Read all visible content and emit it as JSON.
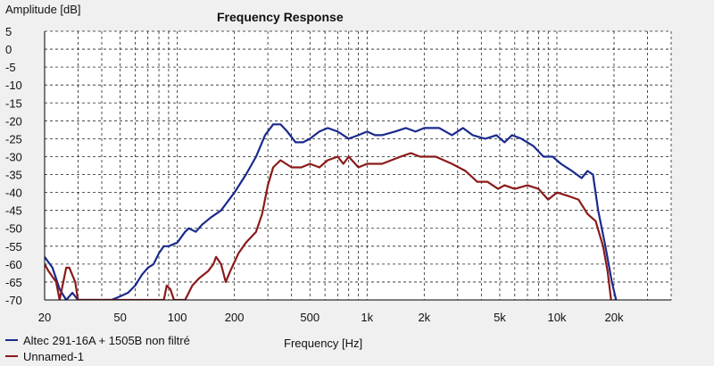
{
  "chart_data": {
    "type": "line",
    "title": "Frequency Response",
    "ylabel": "Amplitude [dB]",
    "xlabel": "Frequency [Hz]",
    "x_scale": "log",
    "xlim": [
      20,
      40000
    ],
    "ylim": [
      -70,
      5
    ],
    "y_ticks": [
      "5",
      "0",
      "-5",
      "-10",
      "-15",
      "-20",
      "-25",
      "-30",
      "-35",
      "-40",
      "-45",
      "-50",
      "-55",
      "-60",
      "-65",
      "-70"
    ],
    "x_ticks": [
      {
        "v": 20,
        "label": "20"
      },
      {
        "v": 50,
        "label": "50"
      },
      {
        "v": 100,
        "label": "100"
      },
      {
        "v": 200,
        "label": "200"
      },
      {
        "v": 500,
        "label": "500"
      },
      {
        "v": 1000,
        "label": "1k"
      },
      {
        "v": 2000,
        "label": "2k"
      },
      {
        "v": 5000,
        "label": "5k"
      },
      {
        "v": 10000,
        "label": "10k"
      },
      {
        "v": 20000,
        "label": "20k"
      }
    ],
    "grid": true,
    "legend_position": "bottom-left",
    "series": [
      {
        "name": "Altec 291-16A + 1505B non filtré",
        "color": "#1a2a8c",
        "points": [
          [
            20,
            -58
          ],
          [
            22,
            -61
          ],
          [
            24,
            -67
          ],
          [
            26,
            -70
          ],
          [
            28,
            -68
          ],
          [
            30,
            -70
          ],
          [
            45,
            -70
          ],
          [
            50,
            -69
          ],
          [
            55,
            -68
          ],
          [
            60,
            -66
          ],
          [
            65,
            -63
          ],
          [
            70,
            -61
          ],
          [
            75,
            -60
          ],
          [
            80,
            -57
          ],
          [
            85,
            -55
          ],
          [
            90,
            -55
          ],
          [
            100,
            -54
          ],
          [
            110,
            -51
          ],
          [
            115,
            -50
          ],
          [
            125,
            -51
          ],
          [
            135,
            -49
          ],
          [
            150,
            -47
          ],
          [
            170,
            -45
          ],
          [
            200,
            -40
          ],
          [
            230,
            -35
          ],
          [
            260,
            -30
          ],
          [
            290,
            -24
          ],
          [
            320,
            -21
          ],
          [
            350,
            -21
          ],
          [
            380,
            -23
          ],
          [
            420,
            -26
          ],
          [
            460,
            -26
          ],
          [
            500,
            -25
          ],
          [
            560,
            -23
          ],
          [
            620,
            -22
          ],
          [
            700,
            -23
          ],
          [
            800,
            -25
          ],
          [
            900,
            -24
          ],
          [
            1000,
            -23
          ],
          [
            1100,
            -24
          ],
          [
            1200,
            -24
          ],
          [
            1400,
            -23
          ],
          [
            1600,
            -22
          ],
          [
            1800,
            -23
          ],
          [
            2000,
            -22
          ],
          [
            2400,
            -22
          ],
          [
            2800,
            -24
          ],
          [
            3200,
            -22
          ],
          [
            3600,
            -24
          ],
          [
            4200,
            -25
          ],
          [
            4800,
            -24
          ],
          [
            5300,
            -26
          ],
          [
            5800,
            -24
          ],
          [
            6500,
            -25
          ],
          [
            7500,
            -27
          ],
          [
            8500,
            -30
          ],
          [
            9500,
            -30
          ],
          [
            10500,
            -32
          ],
          [
            12000,
            -34
          ],
          [
            13500,
            -36
          ],
          [
            14500,
            -34
          ],
          [
            15500,
            -35
          ],
          [
            16500,
            -45
          ],
          [
            18000,
            -55
          ],
          [
            19500,
            -65
          ],
          [
            20500,
            -70
          ]
        ]
      },
      {
        "name": "Unnamed-1",
        "color": "#8b1a1a",
        "points": [
          [
            20,
            -60
          ],
          [
            21,
            -62
          ],
          [
            23,
            -65
          ],
          [
            24,
            -70
          ],
          [
            26,
            -61
          ],
          [
            27,
            -61
          ],
          [
            29,
            -65
          ],
          [
            30,
            -70
          ],
          [
            85,
            -70
          ],
          [
            88,
            -66
          ],
          [
            92,
            -67
          ],
          [
            96,
            -70
          ],
          [
            110,
            -70
          ],
          [
            120,
            -66
          ],
          [
            130,
            -64
          ],
          [
            145,
            -62
          ],
          [
            155,
            -60
          ],
          [
            160,
            -58
          ],
          [
            170,
            -60
          ],
          [
            180,
            -65
          ],
          [
            190,
            -62
          ],
          [
            210,
            -57
          ],
          [
            230,
            -54
          ],
          [
            260,
            -51
          ],
          [
            280,
            -46
          ],
          [
            300,
            -38
          ],
          [
            320,
            -33
          ],
          [
            350,
            -31
          ],
          [
            400,
            -33
          ],
          [
            450,
            -33
          ],
          [
            500,
            -32
          ],
          [
            560,
            -33
          ],
          [
            620,
            -31
          ],
          [
            700,
            -30
          ],
          [
            750,
            -32
          ],
          [
            800,
            -30
          ],
          [
            900,
            -33
          ],
          [
            1000,
            -32
          ],
          [
            1200,
            -32
          ],
          [
            1500,
            -30
          ],
          [
            1700,
            -29
          ],
          [
            1900,
            -30
          ],
          [
            2300,
            -30
          ],
          [
            2800,
            -32
          ],
          [
            3300,
            -34
          ],
          [
            3800,
            -37
          ],
          [
            4300,
            -37
          ],
          [
            4900,
            -39
          ],
          [
            5300,
            -38
          ],
          [
            6000,
            -39
          ],
          [
            7000,
            -38
          ],
          [
            8000,
            -39
          ],
          [
            9000,
            -42
          ],
          [
            10000,
            -40
          ],
          [
            11500,
            -41
          ],
          [
            13000,
            -42
          ],
          [
            14500,
            -46
          ],
          [
            16000,
            -48
          ],
          [
            17500,
            -55
          ],
          [
            18500,
            -62
          ],
          [
            19300,
            -70
          ]
        ]
      }
    ]
  }
}
